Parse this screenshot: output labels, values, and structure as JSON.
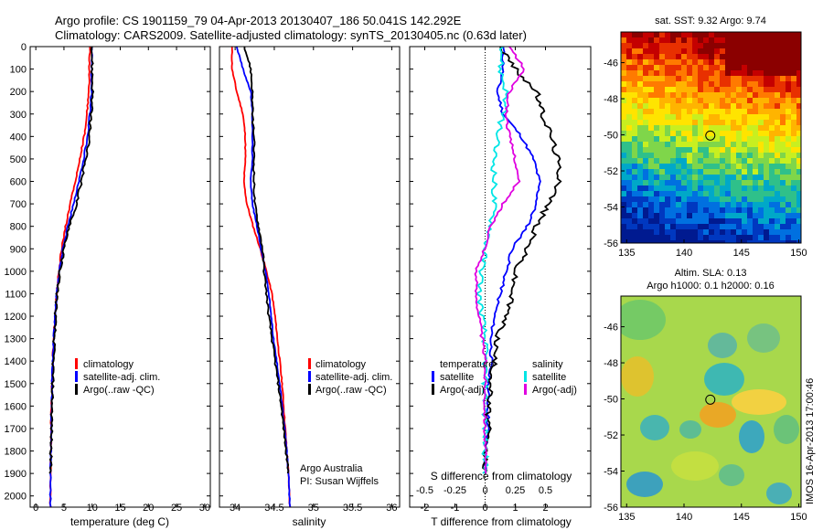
{
  "header": {
    "title_line1": "Argo profile: CS 1901159_79 04-Apr-2013 20130407_186 50.041S 142.292E",
    "title_line2": "Climatology: CARS2009. Satellite-adjusted climatology: synTS_20130405.nc (0.63d later)"
  },
  "footer": {
    "side_label": "IMOS 16-Apr-2013 17:00:46",
    "credit_line1": "Argo Australia",
    "credit_line2": "PI: Susan Wijffels"
  },
  "colors": {
    "climatology": "#ff0000",
    "satellite": "#0000ff",
    "argo": "#000000",
    "satellite_salinity": "#00e5e5",
    "argo_adj_salinity": "#e000e0"
  },
  "chart_data": [
    {
      "type": "line",
      "id": "temperature",
      "xlabel": "temperature (deg C)",
      "xlim": [
        -1,
        31
      ],
      "xticks": [
        0,
        5,
        10,
        15,
        20,
        25,
        30
      ],
      "ylim": [
        2050,
        0
      ],
      "yticks": [
        0,
        100,
        200,
        300,
        400,
        500,
        600,
        700,
        800,
        900,
        1000,
        1100,
        1200,
        1300,
        1400,
        1500,
        1600,
        1700,
        1800,
        1900,
        2000
      ],
      "legend": [
        "climatology",
        "satellite-adj. clim.",
        "Argo(..raw -QC)"
      ],
      "series": [
        {
          "name": "climatology",
          "color": "#ff0000",
          "x": [
            9.6,
            9.5,
            9.4,
            9.1,
            8.6,
            7.8,
            7.0,
            6.1,
            5.3,
            4.6,
            4.1,
            3.7,
            3.4,
            3.2,
            3.0,
            2.9,
            2.8,
            2.7,
            2.7,
            2.6,
            2.6
          ],
          "y": [
            0,
            100,
            200,
            300,
            400,
            500,
            600,
            700,
            800,
            900,
            1000,
            1100,
            1200,
            1300,
            1400,
            1500,
            1600,
            1700,
            1800,
            1900,
            2050
          ]
        },
        {
          "name": "satellite-adj. clim.",
          "color": "#0000ff",
          "x": [
            10.0,
            9.9,
            9.9,
            9.6,
            9.2,
            8.5,
            7.7,
            6.7,
            5.7,
            4.8,
            4.2,
            3.7,
            3.4,
            3.2,
            3.0,
            2.9,
            2.8,
            2.7,
            2.7,
            2.6,
            2.6
          ],
          "y": [
            0,
            100,
            200,
            300,
            400,
            500,
            600,
            700,
            800,
            900,
            1000,
            1100,
            1200,
            1300,
            1400,
            1500,
            1600,
            1700,
            1800,
            1900,
            2050
          ]
        },
        {
          "name": "Argo(..raw -QC)",
          "color": "#000000",
          "x": [
            10.0,
            10.0,
            10.1,
            9.8,
            9.5,
            8.9,
            8.1,
            7.2,
            6.0,
            5.0,
            4.3,
            3.8,
            3.5,
            3.3,
            3.1,
            3.0,
            2.9,
            2.8,
            2.7,
            2.6
          ],
          "y": [
            0,
            100,
            200,
            300,
            400,
            500,
            600,
            700,
            800,
            900,
            1000,
            1100,
            1200,
            1300,
            1400,
            1500,
            1600,
            1700,
            1800,
            1900
          ]
        }
      ]
    },
    {
      "type": "line",
      "id": "salinity",
      "xlabel": "salinity",
      "xlim": [
        33.8,
        36.1
      ],
      "xticks": [
        34,
        34.5,
        35,
        35.5,
        36
      ],
      "ylim": [
        2050,
        0
      ],
      "legend": [
        "climatology",
        "satellite-adj. clim.",
        "Argo(..raw -QC)"
      ],
      "series": [
        {
          "name": "climatology",
          "color": "#ff0000",
          "x": [
            33.96,
            33.96,
            34.02,
            34.1,
            34.13,
            34.13,
            34.11,
            34.15,
            34.23,
            34.32,
            34.4,
            34.47,
            34.51,
            34.54,
            34.57,
            34.6,
            34.62,
            34.64,
            34.66,
            34.68,
            34.7
          ],
          "y": [
            0,
            100,
            200,
            300,
            400,
            500,
            600,
            700,
            800,
            900,
            1000,
            1100,
            1200,
            1300,
            1400,
            1500,
            1600,
            1700,
            1800,
            1900,
            2050
          ]
        },
        {
          "name": "satellite-adj. clim.",
          "color": "#0000ff",
          "x": [
            34.02,
            34.1,
            34.2,
            34.22,
            34.22,
            34.22,
            34.2,
            34.22,
            34.28,
            34.33,
            34.39,
            34.43,
            34.46,
            34.49,
            34.53,
            34.57,
            34.6,
            34.63,
            34.66,
            34.68,
            34.7
          ],
          "y": [
            0,
            100,
            200,
            300,
            400,
            500,
            600,
            700,
            800,
            900,
            1000,
            1100,
            1200,
            1300,
            1400,
            1500,
            1600,
            1700,
            1800,
            1900,
            2050
          ]
        },
        {
          "name": "Argo(..raw -QC)",
          "color": "#000000",
          "x": [
            34.12,
            34.2,
            34.22,
            34.22,
            34.24,
            34.24,
            34.24,
            34.25,
            34.3,
            34.35,
            34.37,
            34.4,
            34.43,
            34.47,
            34.51,
            34.55,
            34.59,
            34.62,
            34.65,
            34.68
          ],
          "y": [
            0,
            100,
            200,
            300,
            400,
            500,
            600,
            700,
            800,
            900,
            1000,
            1100,
            1200,
            1300,
            1400,
            1500,
            1600,
            1700,
            1800,
            1900
          ]
        }
      ]
    },
    {
      "type": "line",
      "id": "difference",
      "xlabel": "T difference from climatology",
      "xlabel_top": "S difference from climatology",
      "xlim": [
        -2.5,
        3.5
      ],
      "xticks": [
        -2,
        -1,
        0,
        1,
        2
      ],
      "xticks_top": [
        "-0.5",
        "-0.25",
        "0",
        "0.25",
        "0.5"
      ],
      "ylim": [
        2050,
        0
      ],
      "legend_temperature_header": "temperature",
      "legend_salinity_header": "salinity",
      "legend_entries": [
        "satellite",
        "Argo(-adj)",
        "satellite",
        "Argo(-adj)"
      ],
      "series": [
        {
          "name": "satellite",
          "group": "temperature",
          "color": "#0000ff",
          "x": [
            0.6,
            0.6,
            0.4,
            0.6,
            1.2,
            1.6,
            1.8,
            1.7,
            1.4,
            0.9,
            0.7,
            0.5,
            0.3,
            0.2,
            0.2,
            0.1,
            0.1,
            0.1,
            0.0,
            0.0
          ],
          "y": [
            0,
            100,
            200,
            300,
            400,
            500,
            600,
            700,
            800,
            900,
            1000,
            1100,
            1200,
            1300,
            1400,
            1500,
            1600,
            1700,
            1800,
            1900
          ]
        },
        {
          "name": "Argo(-adj)",
          "group": "temperature",
          "color": "#000000",
          "x": [
            0.5,
            1.0,
            1.7,
            1.9,
            2.2,
            2.4,
            2.5,
            2.1,
            1.7,
            1.4,
            1.0,
            0.9,
            0.7,
            0.4,
            0.3,
            0.2,
            0.1,
            0.1,
            0.0,
            0.0
          ],
          "y": [
            0,
            100,
            200,
            300,
            400,
            500,
            600,
            700,
            800,
            900,
            1000,
            1100,
            1200,
            1300,
            1400,
            1500,
            1600,
            1700,
            1800,
            1900
          ]
        },
        {
          "name": "satellite",
          "group": "salinity",
          "color": "#00e5e5",
          "x": [
            0.6,
            0.5,
            0.7,
            0.6,
            0.4,
            0.3,
            0.3,
            0.3,
            0.2,
            0.0,
            -0.1,
            -0.2,
            -0.1,
            0.0,
            0.0,
            0.0,
            0.0,
            0.0,
            0.0,
            0.0
          ],
          "y": [
            0,
            100,
            200,
            300,
            400,
            500,
            600,
            700,
            800,
            900,
            1000,
            1100,
            1200,
            1300,
            1400,
            1500,
            1600,
            1700,
            1800,
            1900
          ]
        },
        {
          "name": "Argo(-adj)",
          "group": "salinity",
          "color": "#e000e0",
          "x": [
            0.8,
            1.3,
            0.8,
            0.7,
            0.8,
            1.0,
            1.1,
            0.6,
            0.2,
            0.0,
            -0.3,
            -0.3,
            -0.2,
            -0.1,
            0.0,
            0.0,
            0.0,
            0.0,
            0.0,
            0.0
          ],
          "y": [
            0,
            100,
            200,
            300,
            400,
            500,
            600,
            700,
            800,
            900,
            1000,
            1100,
            1200,
            1300,
            1400,
            1500,
            1600,
            1700,
            1800,
            1900
          ]
        }
      ]
    },
    {
      "type": "heatmap",
      "id": "sst_map",
      "title": "sat. SST: 9.32 Argo: 9.74",
      "xlim": [
        134.5,
        150.2
      ],
      "ylim": [
        -56,
        -44.3
      ],
      "xticks": [
        135,
        140,
        145,
        150
      ],
      "yticks": [
        -46,
        -48,
        -50,
        -52,
        -54,
        -56
      ],
      "marker": {
        "lon": 142.292,
        "lat": -50.041
      }
    },
    {
      "type": "heatmap",
      "id": "sla_map",
      "title_line1": "Altim. SLA: 0.13",
      "title_line2": "Argo h1000: 0.1 h2000: 0.16",
      "xlim": [
        134.5,
        150.2
      ],
      "ylim": [
        -56,
        -44.3
      ],
      "xticks": [
        135,
        140,
        145,
        150
      ],
      "yticks": [
        -46,
        -48,
        -50,
        -52,
        -54,
        -56
      ],
      "marker": {
        "lon": 142.292,
        "lat": -50.041
      }
    }
  ]
}
